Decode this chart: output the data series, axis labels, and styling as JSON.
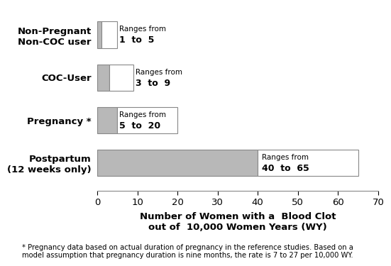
{
  "categories": [
    "Postpartum\n(12 weeks only)",
    "Pregnancy *",
    "COC-User",
    "Non-Pregnant\nNon-COC user"
  ],
  "bar_low": [
    40,
    5,
    3,
    1
  ],
  "bar_high": [
    65,
    20,
    9,
    5
  ],
  "bar_color_low": "#b8b8b8",
  "bar_color_high": "#ffffff",
  "bar_edge_color": "#888888",
  "xlim": [
    0,
    70
  ],
  "xticks": [
    0,
    10,
    20,
    30,
    40,
    50,
    60,
    70
  ],
  "xlabel_line1": "Number of Women with a  Blood Clot",
  "xlabel_line2": "out of  10,000 Women Years (WY)",
  "footnote": "* Pregnancy data based on actual duration of pregnancy in the reference studies. Based on a\nmodel assumption that pregnancy duration is nine months, the rate is 7 to 27 per 10,000 WY.",
  "bar_height": 0.62,
  "background_color": "#ffffff",
  "ann_ranges_fontsize": 7.5,
  "ann_numbers_fontsize": 9.0,
  "ytick_fontsize": 9.5,
  "xtick_fontsize": 9.5,
  "xlabel_fontsize": 9.5,
  "footnote_fontsize": 7.2
}
